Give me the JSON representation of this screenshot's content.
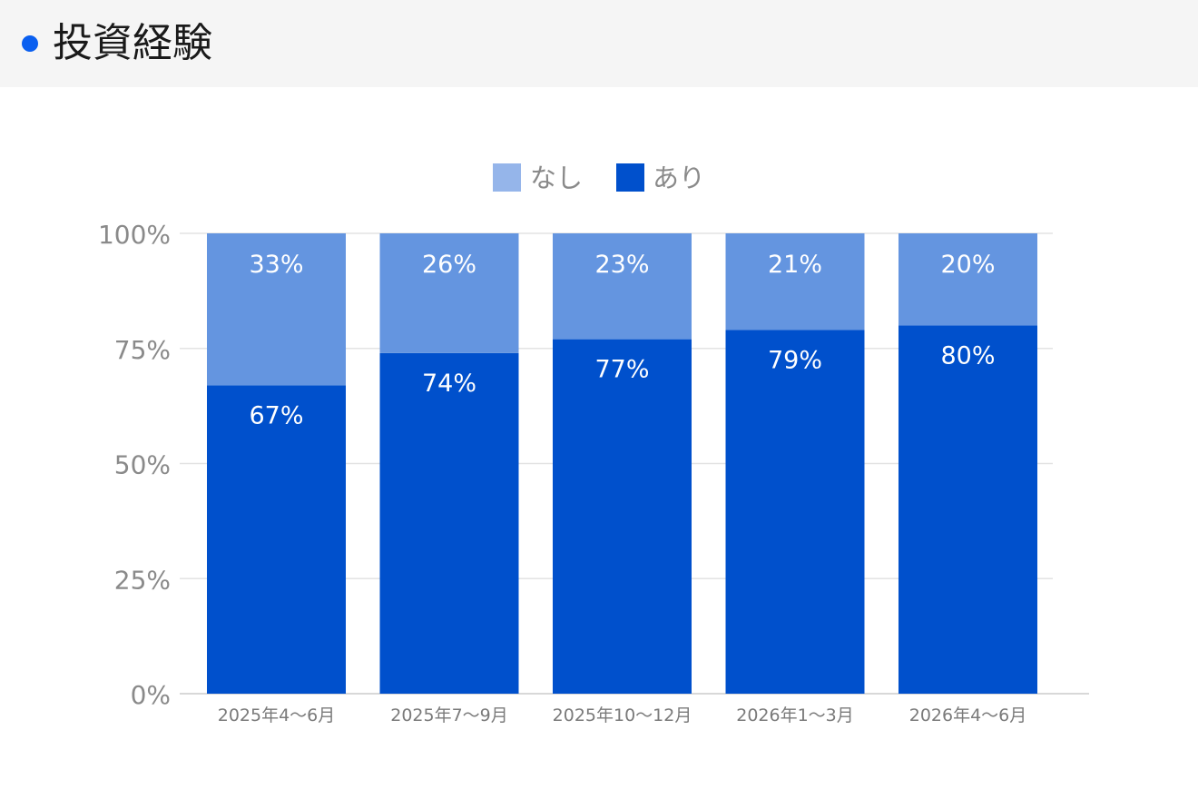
{
  "header": {
    "title": "投資経験"
  },
  "colors": {
    "accent_dot": "#0a5ff0",
    "nashi": "#6495e0",
    "ari": "#0050cc",
    "legend_nashi": "#95b5ea",
    "legend_ari": "#0050cc"
  },
  "chart_data": {
    "type": "bar",
    "stacked": true,
    "categories": [
      "2025年4〜6月",
      "2025年7〜9月",
      "2025年10〜12月",
      "2026年1〜3月",
      "2026年4〜6月"
    ],
    "series": [
      {
        "name": "なし",
        "values": [
          33,
          26,
          23,
          21,
          20
        ],
        "labels": [
          "33%",
          "26%",
          "23%",
          "21%",
          "20%"
        ]
      },
      {
        "name": "あり",
        "values": [
          67,
          74,
          77,
          79,
          80
        ],
        "labels": [
          "67%",
          "74%",
          "77%",
          "79%",
          "80%"
        ]
      }
    ],
    "yticks": [
      "0%",
      "25%",
      "50%",
      "75%",
      "100%"
    ],
    "ylim": [
      0,
      100
    ],
    "legend_position": "top-center",
    "grid": true
  }
}
